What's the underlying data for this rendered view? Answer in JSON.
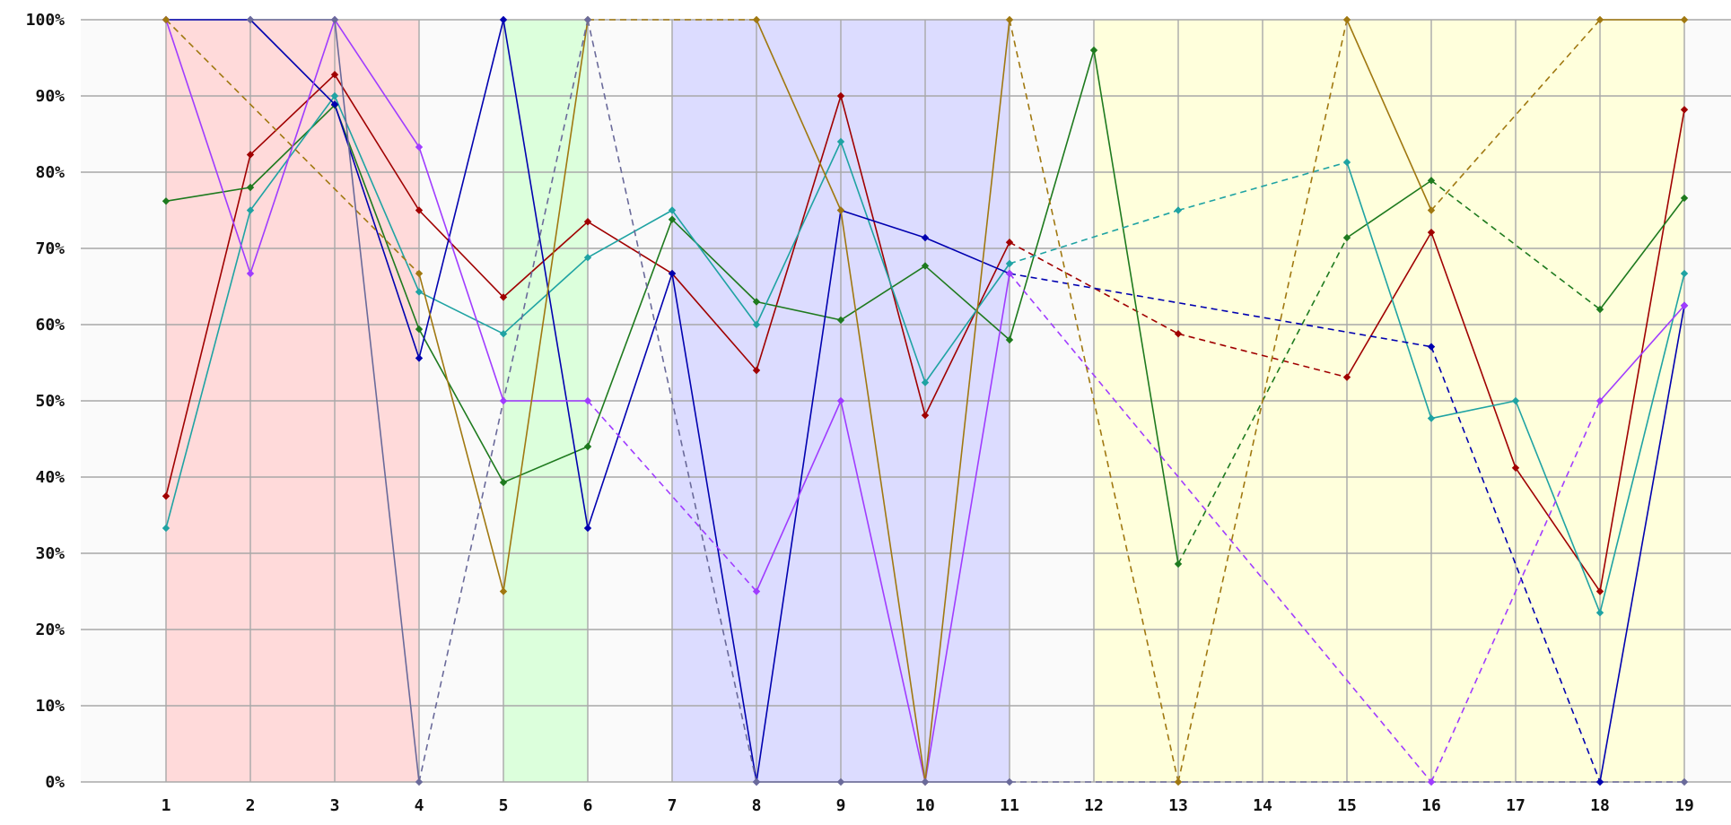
{
  "chart_data": {
    "type": "line",
    "title": "",
    "xlabel": "",
    "ylabel": "",
    "x": [
      1,
      2,
      3,
      4,
      5,
      6,
      7,
      8,
      9,
      10,
      11,
      12,
      13,
      14,
      15,
      16,
      17,
      18,
      19
    ],
    "ylim": [
      0,
      100
    ],
    "yticks": [
      "0%",
      "10%",
      "20%",
      "30%",
      "40%",
      "50%",
      "60%",
      "70%",
      "80%",
      "90%",
      "100%"
    ],
    "xticks": [
      "1",
      "2",
      "3",
      "4",
      "5",
      "6",
      "7",
      "8",
      "9",
      "10",
      "11",
      "12",
      "13",
      "14",
      "15",
      "16",
      "17",
      "18",
      "19"
    ],
    "grid": true,
    "legend": "none",
    "bands": [
      {
        "from": 1,
        "to": 4,
        "color": "#ffdada"
      },
      {
        "from": 5,
        "to": 6,
        "color": "#dcffdc"
      },
      {
        "from": 7,
        "to": 11,
        "color": "#dcdcff"
      },
      {
        "from": 12,
        "to": 19,
        "color": "#ffffdc"
      }
    ],
    "series": [
      {
        "color": "#a00000",
        "values": [
          37.5,
          82.3,
          92.8,
          75,
          63.6,
          73.5,
          66.7,
          54,
          90,
          48.1,
          70.8,
          null,
          58.8,
          null,
          53.1,
          72.1,
          41.2,
          25,
          88.2
        ]
      },
      {
        "color": "#1e7a1e",
        "values": [
          76.2,
          78,
          88.8,
          59.4,
          39.3,
          44,
          73.8,
          63,
          60.6,
          67.7,
          58,
          96,
          28.6,
          null,
          71.4,
          78.9,
          null,
          62,
          76.6
        ]
      },
      {
        "color": "#1fa3a3",
        "values": [
          33.3,
          75,
          90,
          64.3,
          58.8,
          68.8,
          75,
          60,
          84,
          52.4,
          68,
          null,
          75,
          null,
          81.3,
          47.7,
          50,
          22.2,
          66.7
        ]
      },
      {
        "color": "#0000b0",
        "values": [
          100,
          100,
          88.9,
          55.6,
          100,
          33.3,
          66.7,
          0,
          75,
          71.4,
          66.7,
          null,
          null,
          null,
          null,
          57.1,
          null,
          0,
          62.5
        ]
      },
      {
        "color": "#a03cff",
        "values": [
          100,
          66.7,
          100,
          83.3,
          50,
          50,
          null,
          25,
          50,
          0,
          66.7,
          null,
          null,
          null,
          null,
          0,
          null,
          50,
          62.5
        ]
      },
      {
        "color": "#a07810",
        "values": [
          100,
          null,
          null,
          66.7,
          25,
          100,
          null,
          100,
          75,
          0,
          100,
          null,
          0,
          null,
          100,
          75,
          null,
          100,
          100
        ]
      },
      {
        "color": "#6a6a9a",
        "values": [
          null,
          100,
          100,
          0,
          null,
          100,
          null,
          0,
          0,
          0,
          0,
          null,
          null,
          null,
          null,
          null,
          null,
          null,
          0
        ]
      }
    ]
  }
}
